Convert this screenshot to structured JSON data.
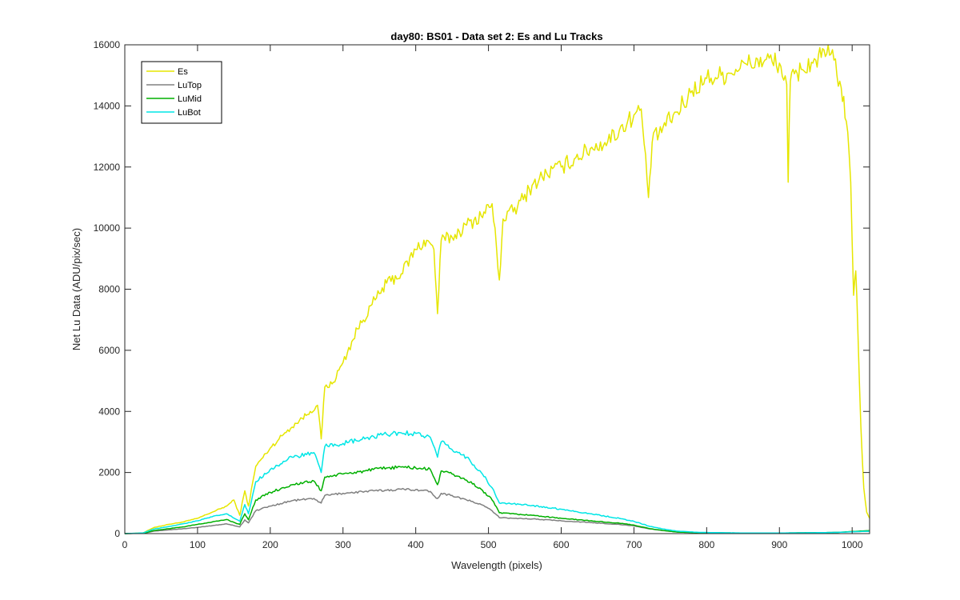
{
  "chart_data": {
    "type": "line",
    "title": "day80: BS01 - Data set 2: Es and Lu Tracks",
    "xlabel": "Wavelength (pixels)",
    "ylabel": "Net Lu Data (ADU/pix/sec)",
    "xlim": [
      0,
      1024
    ],
    "ylim": [
      0,
      16000
    ],
    "xticks": [
      0,
      100,
      200,
      300,
      400,
      500,
      600,
      700,
      800,
      900,
      1000
    ],
    "yticks": [
      0,
      2000,
      4000,
      6000,
      8000,
      10000,
      12000,
      14000,
      16000
    ],
    "legend_position": "top-left",
    "series": [
      {
        "name": "Es",
        "color": "#e6e600",
        "points": [
          [
            0,
            0
          ],
          [
            25,
            20
          ],
          [
            40,
            200
          ],
          [
            60,
            300
          ],
          [
            80,
            380
          ],
          [
            100,
            500
          ],
          [
            120,
            700
          ],
          [
            140,
            900
          ],
          [
            150,
            1100
          ],
          [
            158,
            600
          ],
          [
            165,
            1400
          ],
          [
            170,
            900
          ],
          [
            180,
            2200
          ],
          [
            200,
            2800
          ],
          [
            220,
            3300
          ],
          [
            240,
            3700
          ],
          [
            255,
            4000
          ],
          [
            265,
            4200
          ],
          [
            270,
            3100
          ],
          [
            275,
            4800
          ],
          [
            285,
            4900
          ],
          [
            300,
            5600
          ],
          [
            320,
            6700
          ],
          [
            340,
            7500
          ],
          [
            360,
            8200
          ],
          [
            380,
            8500
          ],
          [
            400,
            9300
          ],
          [
            415,
            9600
          ],
          [
            425,
            9300
          ],
          [
            430,
            7200
          ],
          [
            435,
            9600
          ],
          [
            450,
            9700
          ],
          [
            470,
            10100
          ],
          [
            490,
            10400
          ],
          [
            505,
            10800
          ],
          [
            515,
            8300
          ],
          [
            520,
            10300
          ],
          [
            540,
            10700
          ],
          [
            560,
            11400
          ],
          [
            580,
            11800
          ],
          [
            600,
            12000
          ],
          [
            620,
            12300
          ],
          [
            640,
            12600
          ],
          [
            660,
            12800
          ],
          [
            680,
            13200
          ],
          [
            700,
            13700
          ],
          [
            710,
            13900
          ],
          [
            720,
            11000
          ],
          [
            725,
            12800
          ],
          [
            740,
            13300
          ],
          [
            760,
            13800
          ],
          [
            780,
            14500
          ],
          [
            800,
            14900
          ],
          [
            820,
            15000
          ],
          [
            840,
            15200
          ],
          [
            860,
            15400
          ],
          [
            880,
            15500
          ],
          [
            900,
            15400
          ],
          [
            910,
            14700
          ],
          [
            912,
            11500
          ],
          [
            915,
            14800
          ],
          [
            930,
            15200
          ],
          [
            950,
            15500
          ],
          [
            965,
            15700
          ],
          [
            975,
            15500
          ],
          [
            985,
            14600
          ],
          [
            992,
            13500
          ],
          [
            998,
            11500
          ],
          [
            1002,
            7800
          ],
          [
            1005,
            8600
          ],
          [
            1008,
            6500
          ],
          [
            1012,
            3500
          ],
          [
            1016,
            1500
          ],
          [
            1020,
            700
          ],
          [
            1024,
            500
          ]
        ]
      },
      {
        "name": "LuTop",
        "color": "#808080",
        "points": [
          [
            0,
            0
          ],
          [
            25,
            10
          ],
          [
            40,
            80
          ],
          [
            60,
            120
          ],
          [
            80,
            160
          ],
          [
            100,
            200
          ],
          [
            120,
            260
          ],
          [
            140,
            320
          ],
          [
            158,
            220
          ],
          [
            165,
            450
          ],
          [
            170,
            350
          ],
          [
            180,
            750
          ],
          [
            200,
            900
          ],
          [
            230,
            1080
          ],
          [
            260,
            1150
          ],
          [
            270,
            1000
          ],
          [
            275,
            1250
          ],
          [
            300,
            1320
          ],
          [
            330,
            1380
          ],
          [
            360,
            1420
          ],
          [
            380,
            1450
          ],
          [
            400,
            1440
          ],
          [
            420,
            1380
          ],
          [
            430,
            1150
          ],
          [
            435,
            1320
          ],
          [
            450,
            1250
          ],
          [
            470,
            1100
          ],
          [
            490,
            950
          ],
          [
            505,
            750
          ],
          [
            515,
            520
          ],
          [
            530,
            510
          ],
          [
            560,
            480
          ],
          [
            600,
            420
          ],
          [
            640,
            360
          ],
          [
            680,
            300
          ],
          [
            700,
            250
          ],
          [
            720,
            160
          ],
          [
            740,
            100
          ],
          [
            760,
            50
          ],
          [
            790,
            30
          ],
          [
            850,
            20
          ],
          [
            900,
            20
          ],
          [
            950,
            30
          ],
          [
            980,
            40
          ],
          [
            1000,
            60
          ],
          [
            1024,
            80
          ]
        ]
      },
      {
        "name": "LuMid",
        "color": "#00b000",
        "points": [
          [
            0,
            0
          ],
          [
            25,
            10
          ],
          [
            40,
            100
          ],
          [
            60,
            160
          ],
          [
            80,
            220
          ],
          [
            100,
            300
          ],
          [
            120,
            380
          ],
          [
            140,
            460
          ],
          [
            158,
            300
          ],
          [
            165,
            650
          ],
          [
            170,
            450
          ],
          [
            180,
            1100
          ],
          [
            200,
            1350
          ],
          [
            230,
            1600
          ],
          [
            260,
            1720
          ],
          [
            270,
            1400
          ],
          [
            275,
            1850
          ],
          [
            300,
            1950
          ],
          [
            330,
            2050
          ],
          [
            360,
            2150
          ],
          [
            380,
            2180
          ],
          [
            400,
            2150
          ],
          [
            420,
            2100
          ],
          [
            430,
            1600
          ],
          [
            435,
            2050
          ],
          [
            450,
            1950
          ],
          [
            470,
            1750
          ],
          [
            490,
            1450
          ],
          [
            505,
            1100
          ],
          [
            515,
            680
          ],
          [
            530,
            650
          ],
          [
            560,
            600
          ],
          [
            600,
            500
          ],
          [
            640,
            420
          ],
          [
            680,
            340
          ],
          [
            700,
            280
          ],
          [
            720,
            170
          ],
          [
            740,
            100
          ],
          [
            760,
            50
          ],
          [
            790,
            30
          ],
          [
            850,
            20
          ],
          [
            900,
            20
          ],
          [
            950,
            30
          ],
          [
            980,
            40
          ],
          [
            1000,
            70
          ],
          [
            1024,
            100
          ]
        ]
      },
      {
        "name": "LuBot",
        "color": "#00e6e6",
        "points": [
          [
            0,
            0
          ],
          [
            25,
            20
          ],
          [
            40,
            150
          ],
          [
            60,
            230
          ],
          [
            80,
            320
          ],
          [
            100,
            420
          ],
          [
            120,
            550
          ],
          [
            140,
            650
          ],
          [
            158,
            400
          ],
          [
            165,
            950
          ],
          [
            170,
            650
          ],
          [
            180,
            1700
          ],
          [
            200,
            2100
          ],
          [
            230,
            2500
          ],
          [
            260,
            2650
          ],
          [
            270,
            2000
          ],
          [
            275,
            2850
          ],
          [
            300,
            2950
          ],
          [
            330,
            3100
          ],
          [
            360,
            3250
          ],
          [
            380,
            3300
          ],
          [
            400,
            3280
          ],
          [
            420,
            3150
          ],
          [
            430,
            2500
          ],
          [
            435,
            3000
          ],
          [
            450,
            2750
          ],
          [
            470,
            2500
          ],
          [
            490,
            2000
          ],
          [
            505,
            1500
          ],
          [
            515,
            1000
          ],
          [
            530,
            980
          ],
          [
            560,
            920
          ],
          [
            600,
            800
          ],
          [
            640,
            650
          ],
          [
            680,
            500
          ],
          [
            700,
            400
          ],
          [
            720,
            250
          ],
          [
            740,
            150
          ],
          [
            760,
            80
          ],
          [
            790,
            40
          ],
          [
            850,
            20
          ],
          [
            900,
            20
          ],
          [
            950,
            30
          ],
          [
            980,
            40
          ],
          [
            1000,
            60
          ],
          [
            1024,
            80
          ]
        ]
      }
    ]
  }
}
